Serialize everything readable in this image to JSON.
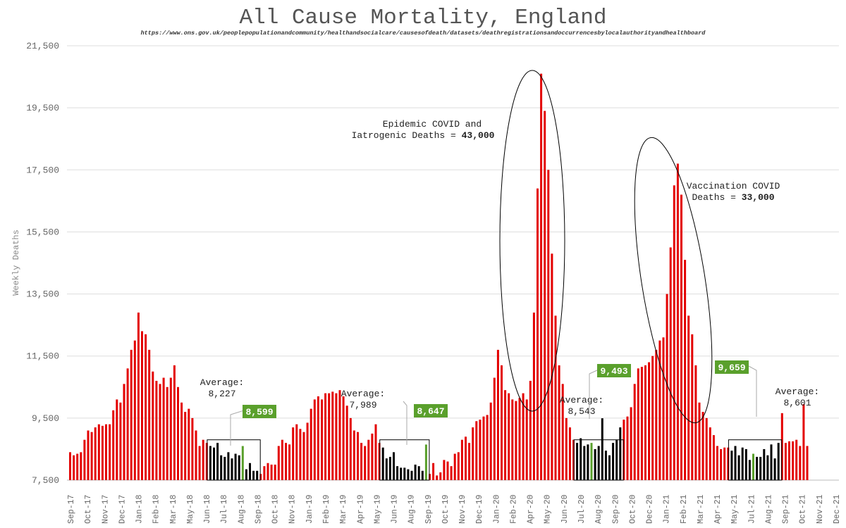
{
  "chart_data": {
    "type": "bar",
    "title": "All Cause Mortality, England",
    "subtitle": "https://www.ons.gov.uk/peoplepopulationandcommunity/healthandsocialcare/causesofdeath/datasets/deathregistrationsandoccurrencesbylocalauthorityandhealthboard",
    "ylabel": "Weekly Deaths",
    "ylim": [
      7500,
      21500
    ],
    "yticks": [
      7500,
      9500,
      11500,
      13500,
      15500,
      17500,
      19500,
      21500
    ],
    "ytick_labels": [
      "7,500",
      "9,500",
      "11,500",
      "13,500",
      "15,500",
      "17,500",
      "19,500",
      "21,500"
    ],
    "grid": "horizontal",
    "x_labels": [
      "Sep-17",
      "Oct-17",
      "Nov-17",
      "Dec-17",
      "Jan-18",
      "Feb-18",
      "Mar-18",
      "May-18",
      "Jun-18",
      "Jul-18",
      "Aug-18",
      "Sep-18",
      "Oct-18",
      "Nov-18",
      "Jan-19",
      "Feb-19",
      "Mar-19",
      "Apr-19",
      "May-19",
      "Jun-19",
      "Aug-19",
      "Sep-19",
      "Oct-19",
      "Nov-19",
      "Dec-19",
      "Jan-20",
      "Feb-20",
      "Apr-20",
      "May-20",
      "Jun-20",
      "Jul-20",
      "Aug-20",
      "Sep-20",
      "Oct-20",
      "Dec-20",
      "Jan-21",
      "Feb-21",
      "Mar-21",
      "Apr-21",
      "May-21",
      "Jul-21",
      "Aug-21",
      "Sep-21",
      "Oct-21",
      "Nov-21",
      "Dec-21"
    ],
    "bar_colors": {
      "default": "#e30000",
      "summer": "#000000",
      "highlight": "#5aa02c"
    },
    "values": [
      8400,
      8300,
      8350,
      8400,
      8800,
      9100,
      9050,
      9200,
      9300,
      9250,
      9300,
      9300,
      9750,
      10100,
      10000,
      10600,
      11100,
      11700,
      12000,
      12900,
      12300,
      12200,
      11700,
      11000,
      10700,
      10600,
      10800,
      10500,
      10800,
      11200,
      10500,
      10000,
      9700,
      9800,
      9500,
      9100,
      8600,
      8800,
      8700,
      8600,
      8550,
      8700,
      8300,
      8250,
      8400,
      8200,
      8350,
      8300,
      8599,
      7850,
      8050,
      7800,
      7800,
      7700,
      7950,
      8050,
      8000,
      8000,
      8600,
      8800,
      8700,
      8650,
      9200,
      9300,
      9150,
      9050,
      9350,
      9800,
      10100,
      10200,
      10100,
      10300,
      10300,
      10350,
      10300,
      10400,
      10200,
      9900,
      9500,
      9100,
      9050,
      8700,
      8600,
      8800,
      9000,
      9300,
      8700,
      8550,
      8200,
      8250,
      8400,
      7950,
      7900,
      7900,
      7850,
      7800,
      8000,
      7950,
      7800,
      8647,
      7700,
      8050,
      7650,
      7750,
      8150,
      8100,
      7950,
      8350,
      8400,
      8800,
      8900,
      8700,
      9200,
      9400,
      9450,
      9550,
      9600,
      10000,
      10800,
      11700,
      11200,
      10400,
      10300,
      10100,
      10050,
      10150,
      10300,
      10100,
      10700,
      12900,
      16900,
      20600,
      19400,
      17500,
      14800,
      12800,
      11200,
      10600,
      9500,
      9200,
      8800,
      8700,
      8850,
      8600,
      8650,
      8700,
      8500,
      8600,
      9493,
      8450,
      8300,
      8700,
      8800,
      9200,
      9450,
      9550,
      9850,
      10600,
      11100,
      11150,
      11200,
      11300,
      11500,
      11700,
      12000,
      12100,
      13500,
      15000,
      17000,
      17700,
      16700,
      14600,
      12800,
      12200,
      11200,
      10000,
      9700,
      9500,
      9200,
      8950,
      8600,
      8500,
      8550,
      8550,
      8450,
      8600,
      8300,
      8550,
      8500,
      8150,
      8350,
      8250,
      8250,
      8500,
      8300,
      8650,
      8200,
      8700,
      9659,
      8700,
      8750,
      8750,
      8800,
      8601,
      9950,
      8601
    ]
  },
  "annotations": {
    "epidemic": {
      "line1": "Epidemic COVID and",
      "line2_prefix": "Iatrogenic Deaths = ",
      "line2_value": "43,000"
    },
    "vaccination": {
      "line1": "Vaccination COVID",
      "line2_prefix": "Deaths = ",
      "line2_value": "33,000"
    },
    "averages": [
      {
        "label": "Average:",
        "value": "8,227",
        "callout": "8,599"
      },
      {
        "label": "Average:",
        "value": "7,989",
        "callout": "8,647"
      },
      {
        "label": "Average:",
        "value": "8,543",
        "callout": "9,493"
      },
      {
        "label": "Average:",
        "value": "8,601",
        "callout": "9,659"
      }
    ]
  }
}
